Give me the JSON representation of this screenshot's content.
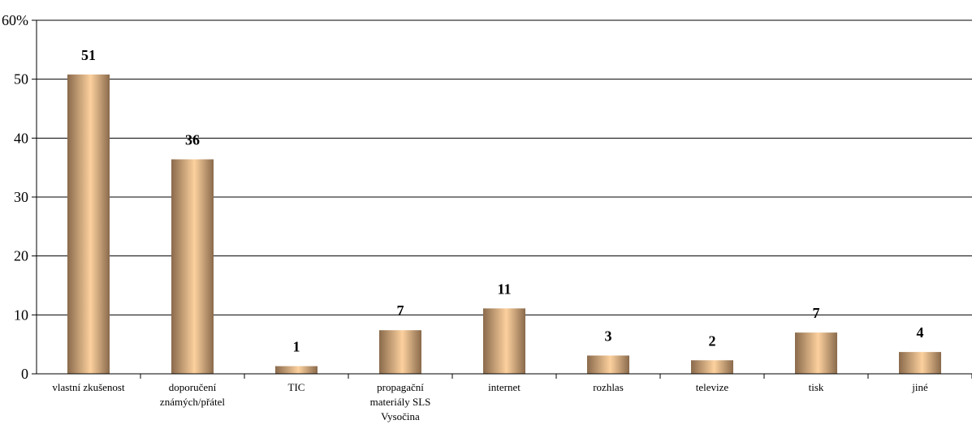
{
  "chart_data": {
    "type": "bar",
    "categories": [
      [
        "vlastní zkušenost"
      ],
      [
        "doporučení",
        "známých/přátel"
      ],
      [
        "TIC"
      ],
      [
        "propagační",
        "materiály SLS",
        "Vysočina"
      ],
      [
        "internet"
      ],
      [
        "rozhlas"
      ],
      [
        "televize"
      ],
      [
        "tisk"
      ],
      [
        "jiné"
      ]
    ],
    "values": [
      50.8,
      36.4,
      1.3,
      7.4,
      11.1,
      3.1,
      2.3,
      7.0,
      3.7
    ],
    "data_labels": [
      "51",
      "36",
      "1",
      "7",
      "11",
      "3",
      "2",
      "7",
      "4"
    ],
    "y_ticks": [
      "0",
      "10",
      "20",
      "30",
      "40",
      "50",
      "60%"
    ],
    "ylim": [
      0,
      60
    ],
    "grid": true,
    "colors": {
      "bar_edge": "#8a6a4c",
      "bar_center": "#fcd19e",
      "grid": "#000000"
    }
  }
}
